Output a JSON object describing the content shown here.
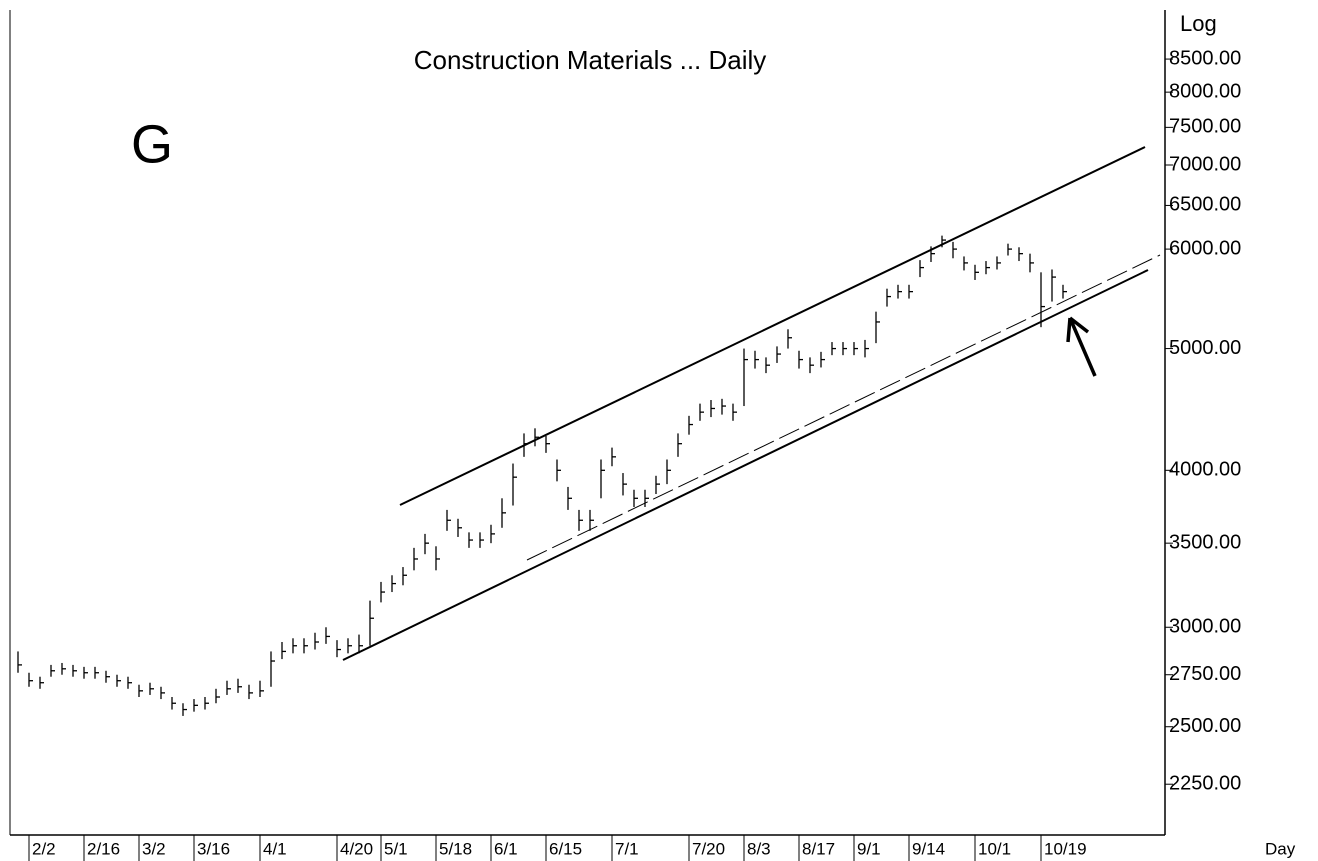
{
  "chart_data": {
    "type": "ohlc",
    "title": "Construction Materials ... Daily",
    "annotation": "G",
    "scale_label": "Log",
    "x_label": "Day",
    "log_scale": true,
    "color": "#000000",
    "categories": [
      null,
      "2/2",
      null,
      null,
      null,
      null,
      "2/16",
      null,
      null,
      null,
      null,
      "3/2",
      null,
      null,
      null,
      null,
      "3/16",
      null,
      null,
      null,
      null,
      null,
      "4/1",
      null,
      null,
      null,
      null,
      null,
      null,
      "4/20",
      null,
      null,
      null,
      "5/1",
      null,
      null,
      null,
      null,
      "5/18",
      null,
      null,
      null,
      null,
      "6/1",
      null,
      null,
      null,
      null,
      "6/15",
      null,
      null,
      null,
      null,
      null,
      "7/1",
      null,
      null,
      null,
      null,
      null,
      null,
      "7/20",
      null,
      null,
      null,
      null,
      "8/3",
      null,
      null,
      null,
      null,
      "8/17",
      null,
      null,
      null,
      null,
      "9/1",
      null,
      null,
      null,
      null,
      "9/14",
      null,
      null,
      null,
      null,
      null,
      "10/1",
      null,
      null,
      null,
      null,
      null,
      "10/19",
      null,
      null
    ],
    "series": [
      {
        "name": "High",
        "values": [
          2870,
          2760,
          2740,
          2800,
          2810,
          2800,
          2790,
          2790,
          2770,
          2750,
          2740,
          2700,
          2710,
          2690,
          2640,
          2610,
          2630,
          2640,
          2680,
          2720,
          2730,
          2700,
          2720,
          2870,
          2920,
          2940,
          2940,
          2970,
          3000,
          2930,
          2940,
          2960,
          3150,
          3260,
          3300,
          3350,
          3470,
          3560,
          3480,
          3720,
          3660,
          3570,
          3570,
          3620,
          3800,
          4050,
          4280,
          4320,
          4260,
          4080,
          3880,
          3720,
          3720,
          4080,
          4170,
          3980,
          3860,
          3860,
          3960,
          4080,
          4280,
          4420,
          4520,
          4550,
          4560,
          4520,
          5000,
          4980,
          4920,
          5020,
          5180,
          4980,
          4920,
          4970,
          5060,
          5060,
          5060,
          5080,
          5350,
          5580,
          5620,
          5620,
          5880,
          6030,
          6150,
          6080,
          5920,
          5830,
          5870,
          5920,
          6060,
          6020,
          5950,
          5750,
          5780,
          5620
        ]
      },
      {
        "name": "Low",
        "values": [
          2760,
          2690,
          2680,
          2740,
          2750,
          2740,
          2730,
          2730,
          2710,
          2690,
          2680,
          2640,
          2650,
          2630,
          2580,
          2550,
          2570,
          2580,
          2610,
          2650,
          2660,
          2630,
          2640,
          2690,
          2830,
          2860,
          2860,
          2880,
          2910,
          2840,
          2860,
          2860,
          2900,
          3140,
          3200,
          3240,
          3330,
          3430,
          3330,
          3580,
          3540,
          3470,
          3470,
          3500,
          3600,
          3750,
          4100,
          4180,
          4130,
          3920,
          3720,
          3580,
          3580,
          3800,
          4030,
          3820,
          3740,
          3740,
          3830,
          3900,
          4100,
          4270,
          4380,
          4410,
          4430,
          4380,
          4500,
          4820,
          4780,
          4870,
          5000,
          4820,
          4780,
          4830,
          4940,
          4940,
          4940,
          4920,
          5050,
          5400,
          5480,
          5480,
          5700,
          5860,
          6020,
          5900,
          5770,
          5670,
          5730,
          5780,
          5930,
          5870,
          5750,
          5200,
          5450,
          5480
        ]
      },
      {
        "name": "Close",
        "values": [
          2800,
          2720,
          2710,
          2770,
          2780,
          2770,
          2760,
          2760,
          2740,
          2720,
          2710,
          2670,
          2680,
          2660,
          2610,
          2580,
          2600,
          2610,
          2640,
          2680,
          2690,
          2660,
          2670,
          2820,
          2870,
          2900,
          2900,
          2920,
          2950,
          2880,
          2900,
          2900,
          3050,
          3200,
          3250,
          3300,
          3400,
          3500,
          3400,
          3650,
          3600,
          3520,
          3520,
          3560,
          3700,
          3950,
          4200,
          4250,
          4200,
          4000,
          3800,
          3650,
          3650,
          4000,
          4100,
          3900,
          3800,
          3800,
          3900,
          4000,
          4200,
          4350,
          4450,
          4480,
          4500,
          4450,
          4900,
          4900,
          4850,
          4950,
          5100,
          4900,
          4850,
          4900,
          5000,
          5000,
          5000,
          5000,
          5250,
          5500,
          5550,
          5550,
          5800,
          5950,
          6100,
          6000,
          5850,
          5750,
          5800,
          5850,
          6000,
          5950,
          5850,
          5400,
          5700,
          5550
        ]
      }
    ],
    "ylim": [
      2050,
      9300
    ],
    "yticks": [
      {
        "value": 2250,
        "label": "2250.00"
      },
      {
        "value": 2500,
        "label": "2500.00"
      },
      {
        "value": 2750,
        "label": "2750.00"
      },
      {
        "value": 3000,
        "label": "3000.00"
      },
      {
        "value": 3500,
        "label": "3500.00"
      },
      {
        "value": 4000,
        "label": "4000.00"
      },
      {
        "value": 5000,
        "label": "5000.00"
      },
      {
        "value": 6000,
        "label": "6000.00"
      },
      {
        "value": 6500,
        "label": "6500.00"
      },
      {
        "value": 7000,
        "label": "7000.00"
      },
      {
        "value": 7500,
        "label": "7500.00"
      },
      {
        "value": 8000,
        "label": "8000.00"
      },
      {
        "value": 8500,
        "label": "8500.00"
      }
    ]
  }
}
